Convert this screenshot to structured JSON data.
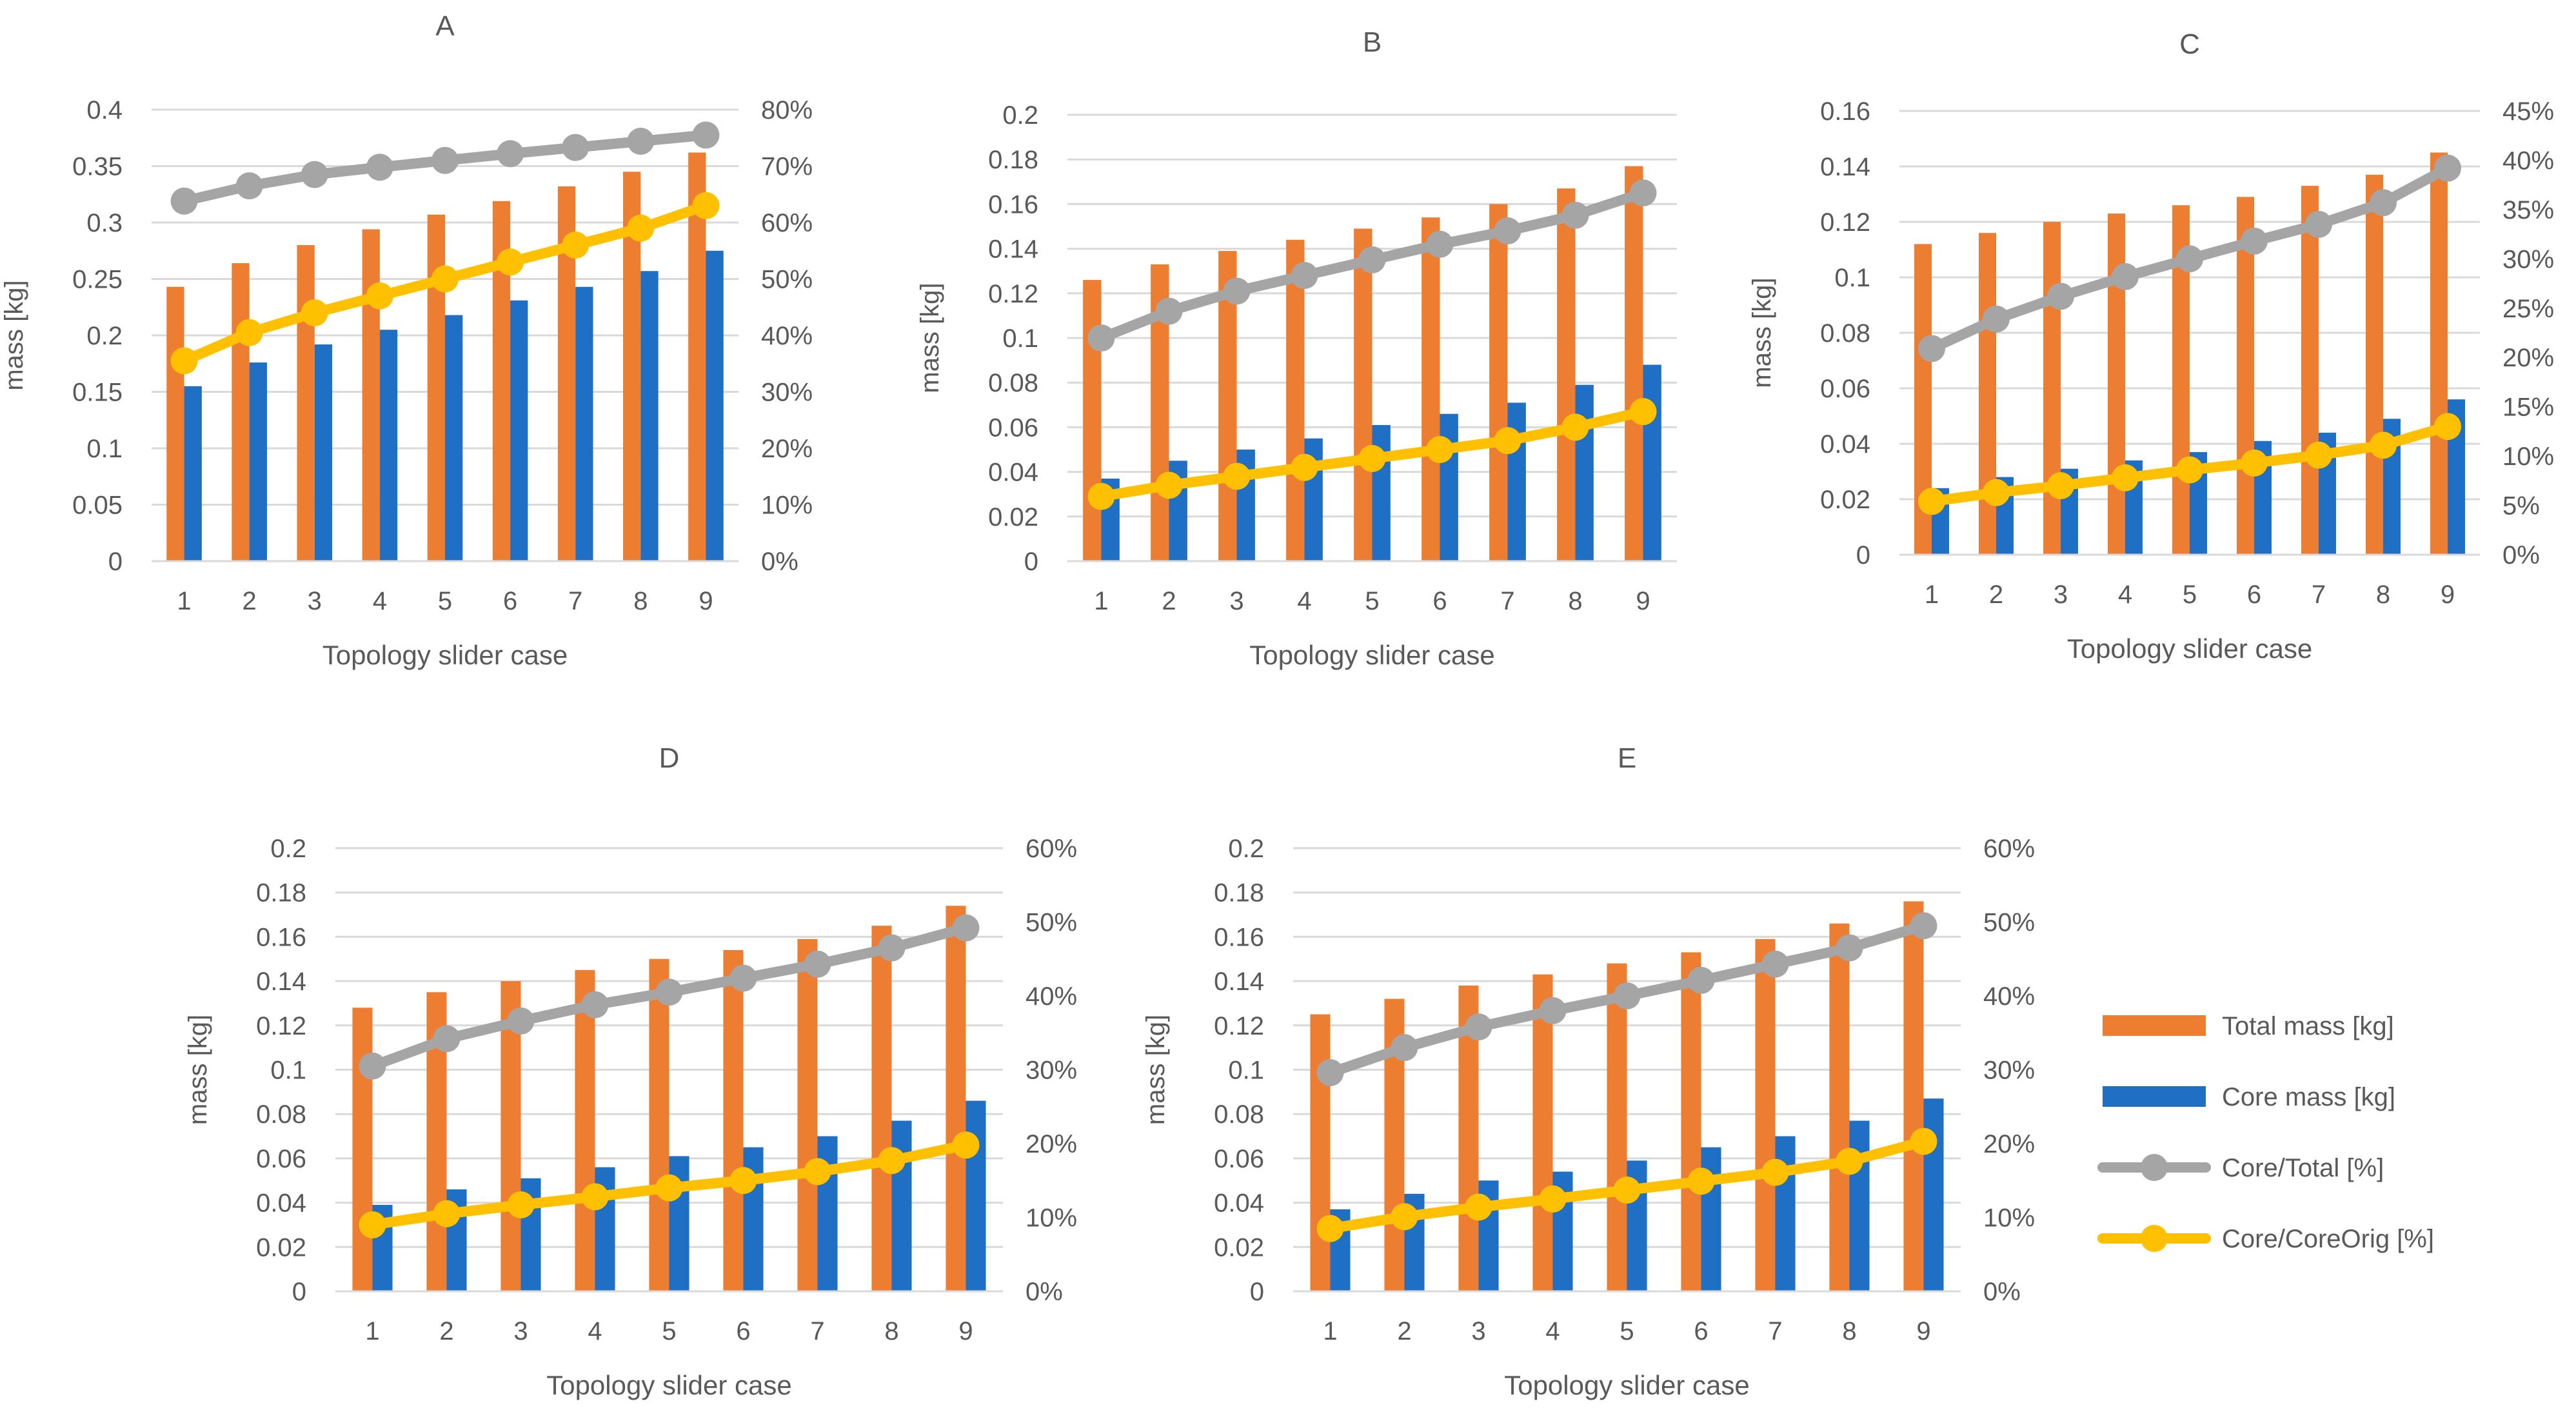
{
  "chart_data": [
    {
      "id": "A",
      "type": "bar",
      "title": "A",
      "xlabel": "Topology slider case",
      "ylabel": "mass [kg]",
      "categories": [
        "1",
        "2",
        "3",
        "4",
        "5",
        "6",
        "7",
        "8",
        "9"
      ],
      "ylim": [
        0,
        0.4
      ],
      "y_ticks": [
        "0",
        "0.05",
        "0.1",
        "0.15",
        "0.2",
        "0.25",
        "0.3",
        "0.35",
        "0.4"
      ],
      "y2lim": [
        0,
        0.8
      ],
      "y2_ticks": [
        "0%",
        "10%",
        "20%",
        "30%",
        "40%",
        "50%",
        "60%",
        "70%",
        "80%"
      ],
      "series": [
        {
          "name": "Total mass [kg]",
          "kind": "bar",
          "axis": "left",
          "values": [
            0.243,
            0.264,
            0.28,
            0.294,
            0.307,
            0.319,
            0.332,
            0.345,
            0.362
          ]
        },
        {
          "name": "Core mass [kg]",
          "kind": "bar",
          "axis": "left",
          "values": [
            0.155,
            0.176,
            0.192,
            0.205,
            0.218,
            0.231,
            0.243,
            0.257,
            0.275
          ]
        },
        {
          "name": "Core/Total [%]",
          "kind": "line",
          "axis": "right",
          "values": [
            0.638,
            0.665,
            0.685,
            0.698,
            0.71,
            0.722,
            0.733,
            0.744,
            0.755
          ]
        },
        {
          "name": "Core/CoreOrig [%]",
          "kind": "line",
          "axis": "right",
          "values": [
            0.355,
            0.405,
            0.44,
            0.47,
            0.5,
            0.53,
            0.56,
            0.59,
            0.63
          ]
        }
      ]
    },
    {
      "id": "B",
      "type": "bar",
      "title": "B",
      "xlabel": "Topology slider case",
      "ylabel": "mass [kg]",
      "categories": [
        "1",
        "2",
        "3",
        "4",
        "5",
        "6",
        "7",
        "8",
        "9"
      ],
      "ylim": [
        0,
        0.2
      ],
      "y_ticks": [
        "0",
        "0.02",
        "0.04",
        "0.06",
        "0.08",
        "0.1",
        "0.12",
        "0.14",
        "0.16",
        "0.18",
        "0.2"
      ],
      "y2lim": [
        0,
        0.2
      ],
      "y2_ticks": [],
      "series": [
        {
          "name": "Total mass [kg]",
          "kind": "bar",
          "axis": "left",
          "values": [
            0.126,
            0.133,
            0.139,
            0.144,
            0.149,
            0.154,
            0.16,
            0.167,
            0.177
          ]
        },
        {
          "name": "Core mass [kg]",
          "kind": "bar",
          "axis": "left",
          "values": [
            0.037,
            0.045,
            0.05,
            0.055,
            0.061,
            0.066,
            0.071,
            0.079,
            0.088
          ]
        },
        {
          "name": "Core/Total [%]",
          "kind": "line",
          "axis": "left",
          "values": [
            0.1,
            0.112,
            0.121,
            0.128,
            0.135,
            0.142,
            0.148,
            0.155,
            0.165
          ]
        },
        {
          "name": "Core/CoreOrig [%]",
          "kind": "line",
          "axis": "left",
          "values": [
            0.029,
            0.034,
            0.038,
            0.042,
            0.046,
            0.05,
            0.054,
            0.06,
            0.067
          ]
        }
      ]
    },
    {
      "id": "C",
      "type": "bar",
      "title": "C",
      "xlabel": "Topology slider case",
      "ylabel": "mass [kg]",
      "categories": [
        "1",
        "2",
        "3",
        "4",
        "5",
        "6",
        "7",
        "8",
        "9"
      ],
      "ylim": [
        0,
        0.16
      ],
      "y_ticks": [
        "0",
        "0.02",
        "0.04",
        "0.06",
        "0.08",
        "0.1",
        "0.12",
        "0.14",
        "0.16"
      ],
      "y2lim": [
        0,
        0.45
      ],
      "y2_ticks": [
        "0%",
        "5%",
        "10%",
        "15%",
        "20%",
        "25%",
        "30%",
        "35%",
        "40%",
        "45%"
      ],
      "series": [
        {
          "name": "Total mass [kg]",
          "kind": "bar",
          "axis": "left",
          "values": [
            0.112,
            0.116,
            0.12,
            0.123,
            0.126,
            0.129,
            0.133,
            0.137,
            0.145
          ]
        },
        {
          "name": "Core mass [kg]",
          "kind": "bar",
          "axis": "left",
          "values": [
            0.024,
            0.028,
            0.031,
            0.034,
            0.037,
            0.041,
            0.044,
            0.049,
            0.056
          ]
        },
        {
          "name": "Core/Total [%]",
          "kind": "line",
          "axis": "right",
          "values": [
            0.209,
            0.239,
            0.262,
            0.282,
            0.3,
            0.318,
            0.335,
            0.357,
            0.392
          ]
        },
        {
          "name": "Core/CoreOrig [%]",
          "kind": "line",
          "axis": "right",
          "values": [
            0.054,
            0.063,
            0.07,
            0.078,
            0.086,
            0.093,
            0.101,
            0.111,
            0.13
          ]
        }
      ]
    },
    {
      "id": "D",
      "type": "bar",
      "title": "D",
      "xlabel": "Topology slider case",
      "ylabel": "mass [kg]",
      "categories": [
        "1",
        "2",
        "3",
        "4",
        "5",
        "6",
        "7",
        "8",
        "9"
      ],
      "ylim": [
        0,
        0.2
      ],
      "y_ticks": [
        "0",
        "0.02",
        "0.04",
        "0.06",
        "0.08",
        "0.1",
        "0.12",
        "0.14",
        "0.16",
        "0.18",
        "0.2"
      ],
      "y2lim": [
        0,
        0.6
      ],
      "y2_ticks": [
        "0%",
        "10%",
        "20%",
        "30%",
        "40%",
        "50%",
        "60%"
      ],
      "series": [
        {
          "name": "Total mass [kg]",
          "kind": "bar",
          "axis": "left",
          "values": [
            0.128,
            0.135,
            0.14,
            0.145,
            0.15,
            0.154,
            0.159,
            0.165,
            0.174
          ]
        },
        {
          "name": "Core mass [kg]",
          "kind": "bar",
          "axis": "left",
          "values": [
            0.039,
            0.046,
            0.051,
            0.056,
            0.061,
            0.065,
            0.07,
            0.077,
            0.086
          ]
        },
        {
          "name": "Core/Total [%]",
          "kind": "line",
          "axis": "right",
          "values": [
            0.305,
            0.342,
            0.366,
            0.388,
            0.405,
            0.424,
            0.443,
            0.465,
            0.492
          ]
        },
        {
          "name": "Core/CoreOrig [%]",
          "kind": "line",
          "axis": "right",
          "values": [
            0.09,
            0.105,
            0.117,
            0.128,
            0.14,
            0.15,
            0.162,
            0.177,
            0.198
          ]
        }
      ]
    },
    {
      "id": "E",
      "type": "bar",
      "title": "E",
      "xlabel": "Topology slider case",
      "ylabel": "mass [kg]",
      "categories": [
        "1",
        "2",
        "3",
        "4",
        "5",
        "6",
        "7",
        "8",
        "9"
      ],
      "ylim": [
        0,
        0.2
      ],
      "y_ticks": [
        "0",
        "0.02",
        "0.04",
        "0.06",
        "0.08",
        "0.1",
        "0.12",
        "0.14",
        "0.16",
        "0.18",
        "0.2"
      ],
      "y2lim": [
        0,
        0.6
      ],
      "y2_ticks": [
        "0%",
        "10%",
        "20%",
        "30%",
        "40%",
        "50%",
        "60%"
      ],
      "series": [
        {
          "name": "Total mass [kg]",
          "kind": "bar",
          "axis": "left",
          "values": [
            0.125,
            0.132,
            0.138,
            0.143,
            0.148,
            0.153,
            0.159,
            0.166,
            0.176
          ]
        },
        {
          "name": "Core mass [kg]",
          "kind": "bar",
          "axis": "left",
          "values": [
            0.037,
            0.044,
            0.05,
            0.054,
            0.059,
            0.065,
            0.07,
            0.077,
            0.087
          ]
        },
        {
          "name": "Core/Total [%]",
          "kind": "line",
          "axis": "right",
          "values": [
            0.296,
            0.33,
            0.358,
            0.38,
            0.4,
            0.421,
            0.443,
            0.465,
            0.495
          ]
        },
        {
          "name": "Core/CoreOrig [%]",
          "kind": "line",
          "axis": "right",
          "values": [
            0.085,
            0.101,
            0.114,
            0.125,
            0.137,
            0.149,
            0.161,
            0.176,
            0.203
          ]
        }
      ]
    }
  ],
  "legend": {
    "placement": "right",
    "items": [
      {
        "label": "Total mass [kg]",
        "kind": "bar",
        "color": "#ED7D31"
      },
      {
        "label": "Core mass [kg]",
        "kind": "bar",
        "color": "#1F6FC4"
      },
      {
        "label": "Core/Total [%]",
        "kind": "line",
        "color": "#A5A5A5"
      },
      {
        "label": "Core/CoreOrig [%]",
        "kind": "line",
        "color": "#FFC000"
      }
    ]
  },
  "colors": {
    "total": "#ED7D31",
    "core": "#1F6FC4",
    "core_total": "#A5A5A5",
    "core_orig": "#FFC000",
    "grid": "#D9D9D9",
    "text": "#595959"
  }
}
